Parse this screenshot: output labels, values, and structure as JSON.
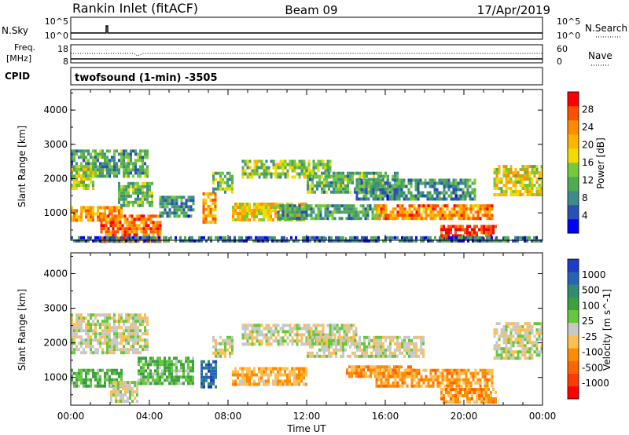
{
  "header": {
    "station": "Rankin Inlet (fitACF)",
    "beam": "Beam 09",
    "date": "17/Apr/2019"
  },
  "summary": {
    "nsky_label": "N.Sky",
    "nsky_ticks": [
      "10^5",
      "10^0"
    ],
    "nsearch_label": "N.Search",
    "nsearch_ticks": [
      "10^5",
      "10^0"
    ],
    "freq_label_1": "Freq.",
    "freq_label_2": "[MHz]",
    "freq_ticks": [
      "18",
      "8"
    ],
    "nave_label": "Nave",
    "nave_ticks": [
      "60",
      "0"
    ],
    "cpid_label": "CPID",
    "cpid_text": "twofsound (1-min) -3505"
  },
  "colors": {
    "power_scale": [
      "#0000ff",
      "#2850b8",
      "#3c8c8c",
      "#50aa50",
      "#78c83c",
      "#f0dc00",
      "#ffb400",
      "#ff8c00",
      "#ff5000",
      "#ff0000"
    ],
    "velocity_scale": [
      "#ff0000",
      "#ff3c00",
      "#ff6400",
      "#ff8c00",
      "#ffbe50",
      "#c8c8c8",
      "#64c83c",
      "#3ca040",
      "#2f8c6e",
      "#2864b4",
      "#1e3cc8"
    ]
  },
  "chart_data": [
    {
      "type": "heatmap",
      "panel": "power",
      "ylabel": "Slant Range [km]",
      "yticks": [
        "4000",
        "3000",
        "2000",
        "1000"
      ],
      "ylim": [
        200,
        4600
      ],
      "xlim": [
        0,
        24
      ],
      "colorbar_label": "Power [dB]",
      "colorbar_ticks": [
        "28",
        "24",
        "20",
        "16",
        "12",
        "8",
        "4"
      ],
      "clim": [
        0,
        32
      ],
      "bands": [
        {
          "t0": 0.0,
          "t1": 3.9,
          "r0": 2100,
          "r1": 2850,
          "v": 11
        },
        {
          "t0": 0.0,
          "t1": 1.2,
          "r0": 1700,
          "r1": 2400,
          "v": 16
        },
        {
          "t0": 0.0,
          "t1": 2.6,
          "r0": 800,
          "r1": 1200,
          "v": 23
        },
        {
          "t0": 1.5,
          "t1": 4.6,
          "r0": 200,
          "r1": 950,
          "v": 26
        },
        {
          "t0": 2.4,
          "t1": 4.2,
          "r0": 1200,
          "r1": 1900,
          "v": 12
        },
        {
          "t0": 4.5,
          "t1": 6.2,
          "r0": 900,
          "r1": 1500,
          "v": 9
        },
        {
          "t0": 6.7,
          "t1": 7.4,
          "r0": 700,
          "r1": 1600,
          "v": 22
        },
        {
          "t0": 7.2,
          "t1": 8.2,
          "r0": 1600,
          "r1": 2200,
          "v": 12
        },
        {
          "t0": 8.2,
          "t1": 12.0,
          "r0": 800,
          "r1": 1300,
          "v": 19
        },
        {
          "t0": 8.7,
          "t1": 13.2,
          "r0": 2000,
          "r1": 2550,
          "v": 14
        },
        {
          "t0": 12.0,
          "t1": 16.6,
          "r0": 1600,
          "r1": 2200,
          "v": 12
        },
        {
          "t0": 10.5,
          "t1": 16.0,
          "r0": 800,
          "r1": 1250,
          "v": 10
        },
        {
          "t0": 14.5,
          "t1": 20.6,
          "r0": 1400,
          "r1": 2000,
          "v": 9
        },
        {
          "t0": 15.5,
          "t1": 21.5,
          "r0": 800,
          "r1": 1250,
          "v": 24
        },
        {
          "t0": 18.8,
          "t1": 21.6,
          "r0": 250,
          "r1": 650,
          "v": 29
        },
        {
          "t0": 21.5,
          "t1": 24.0,
          "r0": 1500,
          "r1": 2400,
          "v": 18
        },
        {
          "t0": 0.0,
          "t1": 24.0,
          "r0": 200,
          "r1": 320,
          "v": 7
        }
      ]
    },
    {
      "type": "heatmap",
      "panel": "velocity",
      "ylabel": "Slant Range [km]",
      "yticks": [
        "4000",
        "3000",
        "2000",
        "1000"
      ],
      "ylim": [
        200,
        4600
      ],
      "xlim": [
        0,
        24
      ],
      "xlabel": "Time UT",
      "xticks": [
        "00:00",
        "04:00",
        "08:00",
        "12:00",
        "16:00",
        "20:00",
        "00:00"
      ],
      "colorbar_label": "Velocity [m s^-1]",
      "colorbar_ticks": [
        "1000",
        "500",
        "100",
        "25",
        "-25",
        "-100",
        "-500",
        "-1000"
      ],
      "clim": [
        -1200,
        1200
      ],
      "bands": [
        {
          "t0": 0.0,
          "t1": 3.9,
          "r0": 1700,
          "r1": 2850,
          "v": 0
        },
        {
          "t0": 0.0,
          "t1": 2.6,
          "r0": 750,
          "r1": 1250,
          "v": 300
        },
        {
          "t0": 2.0,
          "t1": 3.4,
          "r0": 300,
          "r1": 900,
          "v": 0
        },
        {
          "t0": 3.4,
          "t1": 6.2,
          "r0": 800,
          "r1": 1600,
          "v": 300
        },
        {
          "t0": 6.6,
          "t1": 7.4,
          "r0": 700,
          "r1": 1500,
          "v": 800
        },
        {
          "t0": 7.2,
          "t1": 8.2,
          "r0": 1600,
          "r1": 2200,
          "v": 0
        },
        {
          "t0": 8.2,
          "t1": 12.0,
          "r0": 800,
          "r1": 1300,
          "v": -300
        },
        {
          "t0": 8.7,
          "t1": 14.5,
          "r0": 1950,
          "r1": 2550,
          "v": 0
        },
        {
          "t0": 12.0,
          "t1": 18.0,
          "r0": 1600,
          "r1": 2200,
          "v": 0
        },
        {
          "t0": 14.0,
          "t1": 17.5,
          "r0": 1000,
          "r1": 1350,
          "v": -400
        },
        {
          "t0": 15.5,
          "t1": 21.5,
          "r0": 700,
          "r1": 1250,
          "v": -400
        },
        {
          "t0": 18.8,
          "t1": 21.6,
          "r0": 250,
          "r1": 700,
          "v": -400
        },
        {
          "t0": 21.5,
          "t1": 24.0,
          "r0": 1500,
          "r1": 2600,
          "v": 0
        }
      ]
    }
  ]
}
